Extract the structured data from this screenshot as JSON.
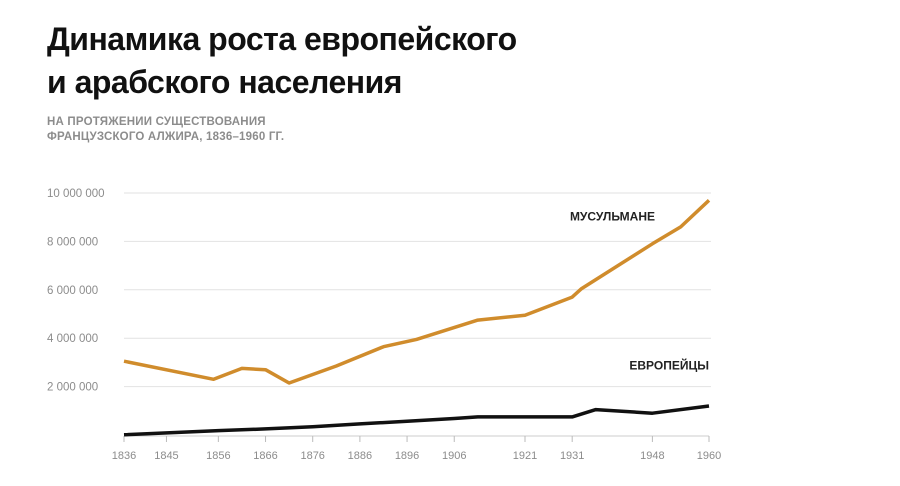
{
  "title_lines": [
    "Динамика роста европейского",
    "и арабского населения"
  ],
  "subtitle_lines": [
    "НА ПРОТЯЖЕНИИ СУЩЕСТВОВАНИЯ",
    "ФРАНЦУЗСКОГО АЛЖИРА, 1836–1960 ГГ."
  ],
  "chart_data": {
    "type": "line",
    "title": "Динамика роста европейского и арабского населения",
    "subtitle": "НА ПРОТЯЖЕНИИ СУЩЕСТВОВАНИЯ ФРАНЦУЗСКОГО АЛЖИРА, 1836–1960 ГГ.",
    "xlabel": "",
    "ylabel": "",
    "xlim": [
      1836,
      1960
    ],
    "ylim": [
      0,
      10000000
    ],
    "x_ticks": [
      1836,
      1845,
      1856,
      1866,
      1876,
      1886,
      1896,
      1906,
      1921,
      1931,
      1948,
      1960
    ],
    "y_ticks": [
      2000000,
      4000000,
      6000000,
      8000000,
      10000000
    ],
    "y_tick_labels": [
      "2 000 000",
      "4 000 000",
      "6 000 000",
      "8 000 000",
      "10 000 000"
    ],
    "grid": "horizontal",
    "series": [
      {
        "name": "МУСУЛЬМАНЕ",
        "color": "#D08C2C",
        "points": [
          [
            1836,
            3050000
          ],
          [
            1855,
            2300000
          ],
          [
            1861,
            2750000
          ],
          [
            1866,
            2700000
          ],
          [
            1871,
            2150000
          ],
          [
            1881,
            2850000
          ],
          [
            1891,
            3650000
          ],
          [
            1898,
            3950000
          ],
          [
            1911,
            4750000
          ],
          [
            1921,
            4950000
          ],
          [
            1931,
            5700000
          ],
          [
            1933,
            6050000
          ],
          [
            1948,
            7900000
          ],
          [
            1954,
            8600000
          ],
          [
            1960,
            9700000
          ]
        ]
      },
      {
        "name": "ЕВРОПЕЙЦЫ",
        "color": "#111111",
        "points": [
          [
            1836,
            10000
          ],
          [
            1856,
            180000
          ],
          [
            1866,
            250000
          ],
          [
            1876,
            340000
          ],
          [
            1886,
            460000
          ],
          [
            1896,
            570000
          ],
          [
            1906,
            680000
          ],
          [
            1911,
            750000
          ],
          [
            1921,
            750000
          ],
          [
            1931,
            750000
          ],
          [
            1936,
            1050000
          ],
          [
            1948,
            900000
          ],
          [
            1960,
            1200000
          ]
        ]
      }
    ]
  }
}
